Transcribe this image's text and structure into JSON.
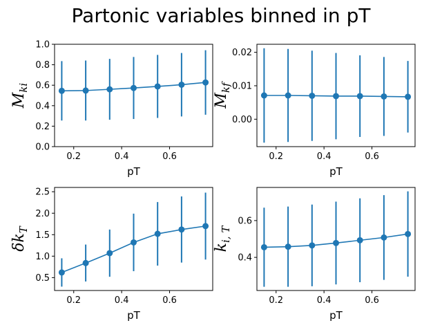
{
  "figure_title": "Partonic variables binned in pT",
  "series_color": "#1f77b4",
  "chart_data": [
    {
      "type": "line",
      "xlabel": "pT",
      "ylabel": {
        "main": "M",
        "sub": "ki",
        "prefix": ""
      },
      "x": [
        0.15,
        0.25,
        0.35,
        0.45,
        0.55,
        0.65,
        0.75
      ],
      "y": [
        0.545,
        0.548,
        0.56,
        0.573,
        0.588,
        0.605,
        0.627
      ],
      "yerr": [
        0.29,
        0.293,
        0.297,
        0.303,
        0.308,
        0.31,
        0.315
      ],
      "xlim": [
        0.12,
        0.78
      ],
      "ylim": [
        0.0,
        1.0
      ],
      "xticks": [
        0.2,
        0.4,
        0.6
      ],
      "xtick_labels": [
        "0.2",
        "0.4",
        "0.6"
      ],
      "yticks": [
        0.0,
        0.2,
        0.4,
        0.6,
        0.8,
        1.0
      ],
      "ytick_labels": [
        "0.0",
        "0.2",
        "0.4",
        "0.6",
        "0.8",
        "1.0"
      ]
    },
    {
      "type": "line",
      "xlabel": "pT",
      "ylabel": {
        "main": "M",
        "sub": "kf",
        "prefix": ""
      },
      "x": [
        0.15,
        0.25,
        0.35,
        0.45,
        0.55,
        0.65,
        0.75
      ],
      "y": [
        0.0071,
        0.0071,
        0.007,
        0.0069,
        0.0069,
        0.0068,
        0.0067
      ],
      "yerr": [
        0.0141,
        0.0139,
        0.0135,
        0.0129,
        0.0122,
        0.0118,
        0.0107
      ],
      "xlim": [
        0.12,
        0.78
      ],
      "ylim": [
        -0.0082,
        0.0224
      ],
      "xticks": [
        0.2,
        0.4,
        0.6
      ],
      "xtick_labels": [
        "0.2",
        "0.4",
        "0.6"
      ],
      "yticks": [
        0.0,
        0.01,
        0.02
      ],
      "ytick_labels": [
        "0.00",
        "0.01",
        "0.02"
      ]
    },
    {
      "type": "line",
      "xlabel": "pT",
      "ylabel": {
        "main": "k",
        "sub": "T",
        "prefix": "δ"
      },
      "x": [
        0.15,
        0.25,
        0.35,
        0.45,
        0.55,
        0.65,
        0.75
      ],
      "y": [
        0.62,
        0.84,
        1.07,
        1.32,
        1.52,
        1.62,
        1.7
      ],
      "yerr": [
        0.33,
        0.43,
        0.55,
        0.67,
        0.74,
        0.77,
        0.78
      ],
      "xlim": [
        0.12,
        0.78
      ],
      "ylim": [
        0.2,
        2.6
      ],
      "xticks": [
        0.2,
        0.4,
        0.6
      ],
      "xtick_labels": [
        "0.2",
        "0.4",
        "0.6"
      ],
      "yticks": [
        0.5,
        1.0,
        1.5,
        2.0,
        2.5
      ],
      "ytick_labels": [
        "0.5",
        "1.0",
        "1.5",
        "2.0",
        "2.5"
      ]
    },
    {
      "type": "line",
      "xlabel": "pT",
      "ylabel": {
        "main": "k",
        "sub": "i, T",
        "prefix": ""
      },
      "x": [
        0.15,
        0.25,
        0.35,
        0.45,
        0.55,
        0.65,
        0.75
      ],
      "y": [
        0.455,
        0.458,
        0.465,
        0.478,
        0.493,
        0.508,
        0.527
      ],
      "yerr": [
        0.215,
        0.218,
        0.222,
        0.225,
        0.228,
        0.23,
        0.232
      ],
      "xlim": [
        0.12,
        0.78
      ],
      "ylim": [
        0.22,
        0.78
      ],
      "xticks": [
        0.2,
        0.4,
        0.6
      ],
      "xtick_labels": [
        "0.2",
        "0.4",
        "0.6"
      ],
      "yticks": [
        0.4,
        0.6
      ],
      "ytick_labels": [
        "0.4",
        "0.6"
      ]
    }
  ]
}
